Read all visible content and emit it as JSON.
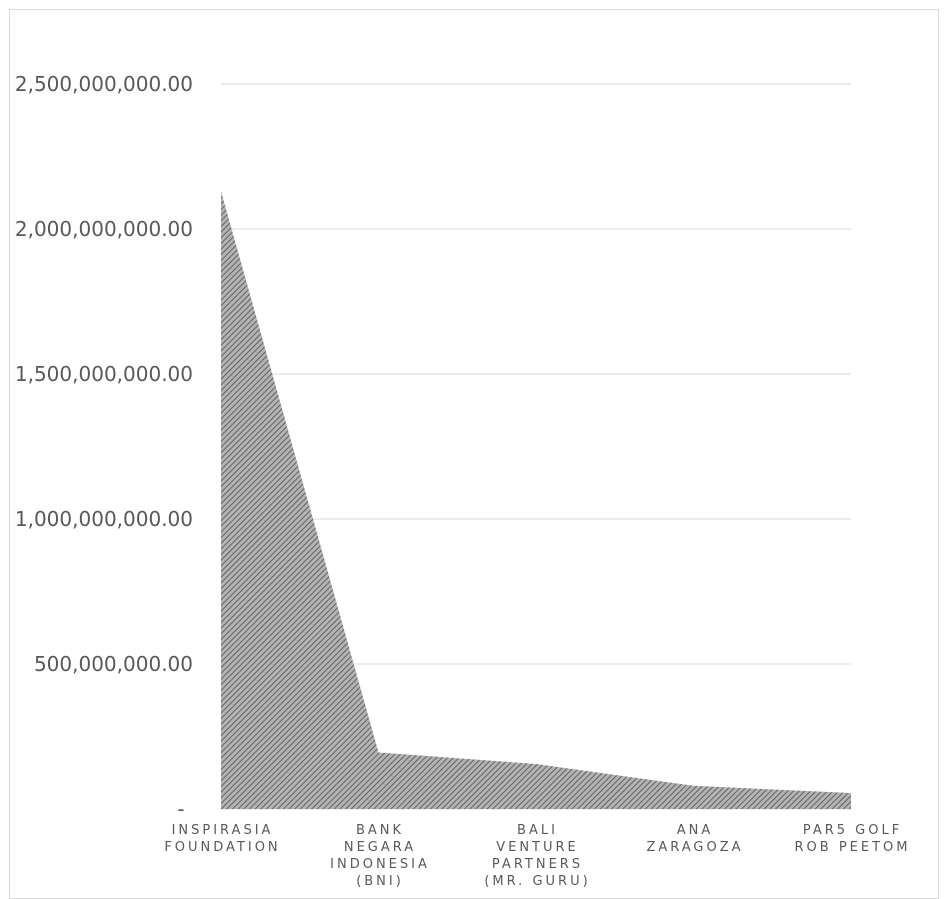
{
  "chart_data": {
    "type": "area",
    "categories": [
      [
        "INSPIRASIA",
        "FOUNDATION"
      ],
      [
        "BANK",
        "NEGARA",
        "INDONESIA",
        "(BNI)"
      ],
      [
        "BALI",
        "VENTURE",
        "PARTNERS",
        "(MR. GURU)"
      ],
      [
        "ANA",
        "ZARAGOZA"
      ],
      [
        "PAR5 GOLF",
        "ROB PEETOM"
      ]
    ],
    "values": [
      2130000000,
      195000000,
      155000000,
      80000000,
      55000000
    ],
    "ylim": [
      0,
      2500000000
    ],
    "yticks": [
      0,
      500000000,
      1000000000,
      1500000000,
      2000000000,
      2500000000
    ],
    "ytick_labels": [
      "-",
      "500,000,000.00",
      "1,000,000,000.00",
      "1,500,000,000.00",
      "2,000,000,000.00",
      "2,500,000,000.00"
    ],
    "title": "",
    "xlabel": "",
    "ylabel": "",
    "grid": true,
    "colors": {
      "area_fill": "#a6a6a6",
      "hatch": "#404040",
      "grid": "#d9d9d9",
      "text": "#595959"
    }
  }
}
